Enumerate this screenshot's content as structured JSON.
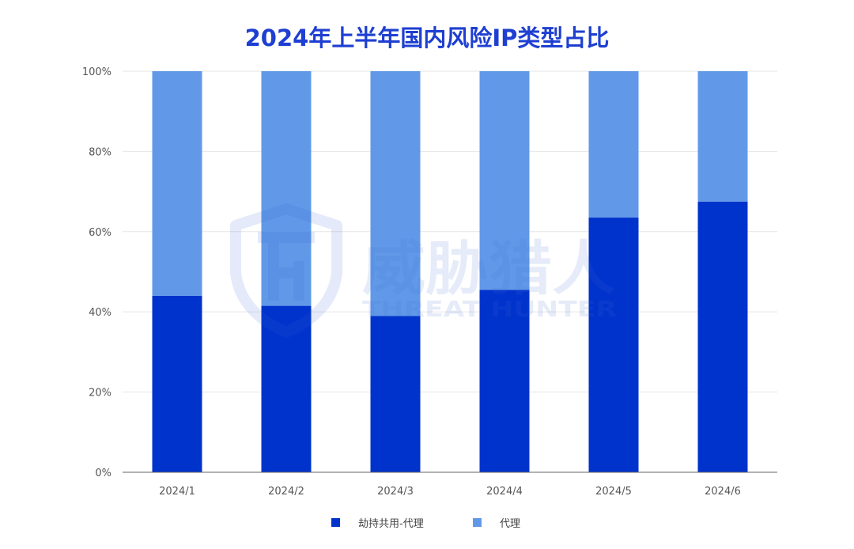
{
  "chart_data": {
    "type": "bar",
    "stacked": true,
    "title": "2024年上半年国内风险IP类型占比",
    "categories": [
      "2024/1",
      "2024/2",
      "2024/3",
      "2024/4",
      "2024/5",
      "2024/6"
    ],
    "series": [
      {
        "name": "劫持共用-代理",
        "color": "#0033cc",
        "values": [
          44,
          41.5,
          39,
          45.5,
          63.5,
          67.5
        ]
      },
      {
        "name": "代理",
        "color": "#6199e8",
        "values": [
          56,
          58.5,
          61,
          54.5,
          36.5,
          32.5
        ]
      }
    ],
    "ylim": [
      0,
      100
    ],
    "yticks": [
      "0%",
      "20%",
      "40%",
      "60%",
      "80%",
      "100%"
    ],
    "ytick_values": [
      0,
      20,
      40,
      60,
      80,
      100
    ],
    "grid": true,
    "legend": "bottom-center"
  },
  "watermark": {
    "brand": "威胁猎人",
    "brand_en": "THREAT HUNTER"
  }
}
